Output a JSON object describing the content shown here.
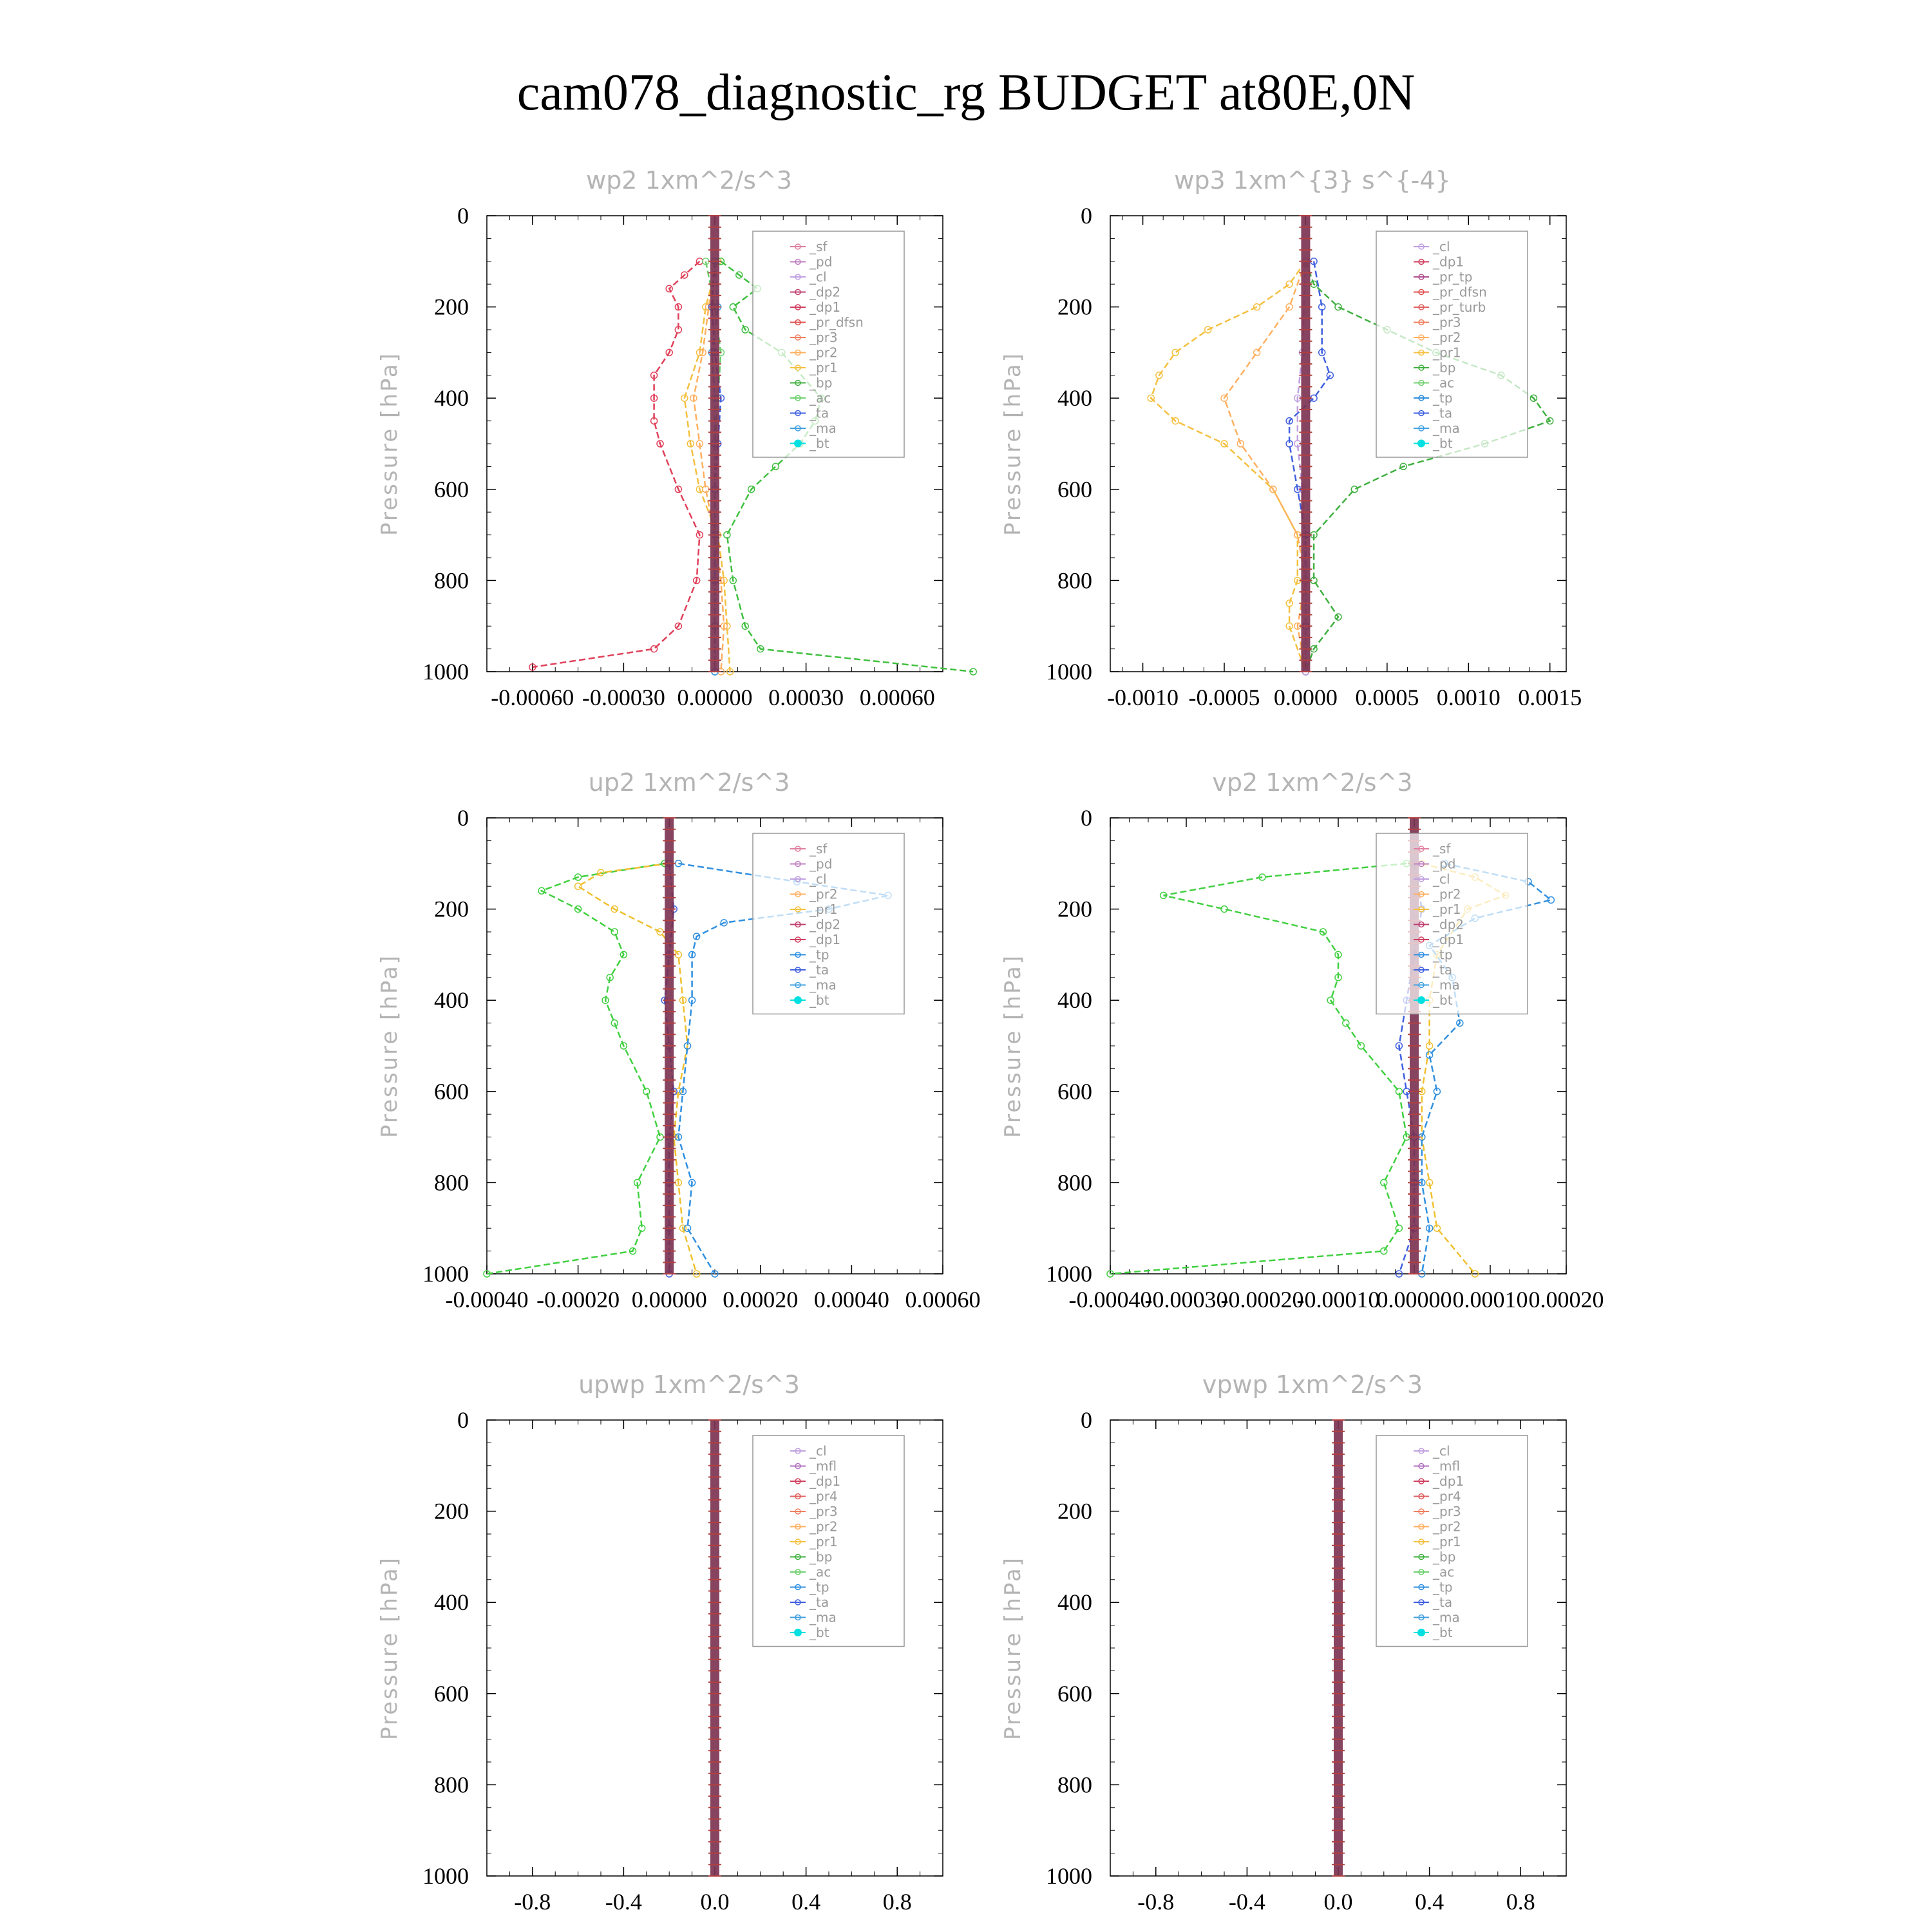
{
  "figure_title": "cam078_diagnostic_rg  BUDGET at80E,0N",
  "chart_data": [
    {
      "type": "line",
      "title": "wp2   1xm^2/s^3",
      "ylabel": "Pressure [hPa]",
      "ylim": [
        1000,
        0
      ],
      "xlim": [
        -0.00075,
        0.00075
      ],
      "xticks": [
        "-0.00060",
        "-0.00030",
        "0.00000",
        "0.00030",
        "0.00060"
      ],
      "xtick_values": [
        -0.0006,
        -0.0003,
        0.0,
        0.0003,
        0.0006
      ],
      "yticks": [
        "0",
        "200",
        "400",
        "600",
        "800",
        "1000"
      ],
      "legend_position": "top-right",
      "legend": [
        "_sf",
        "_pd",
        "_cl",
        "_dp2",
        "_dp1",
        "_pr_dfsn",
        "_pr3",
        "_pr2",
        "_pr1",
        "_bp",
        "_ac",
        "_ta",
        "_ma",
        "_bt"
      ],
      "series": [
        {
          "name": "_dp1",
          "color": "#e0405a",
          "y": [
            100,
            130,
            160,
            200,
            250,
            300,
            350,
            400,
            450,
            500,
            600,
            700,
            800,
            900,
            950,
            990
          ],
          "x": [
            -5e-05,
            -0.0001,
            -0.00015,
            -0.00012,
            -0.00012,
            -0.00015,
            -0.0002,
            -0.0002,
            -0.0002,
            -0.00018,
            -0.00012,
            -5e-05,
            -6e-05,
            -0.00012,
            -0.0002,
            -0.0006
          ]
        },
        {
          "name": "_pr1",
          "color": "#f4c040",
          "y": [
            100,
            200,
            300,
            400,
            500,
            600,
            700,
            800,
            900,
            1000
          ],
          "x": [
            1e-05,
            -3e-05,
            -5e-05,
            -0.0001,
            -8e-05,
            -5e-05,
            1e-05,
            3e-05,
            4e-05,
            5e-05
          ]
        },
        {
          "name": "_pr2",
          "color": "#ffb060",
          "y": [
            100,
            200,
            300,
            400,
            500,
            600,
            700,
            800,
            900,
            1000
          ],
          "x": [
            0.0,
            -2e-05,
            -4e-05,
            -7e-05,
            -5e-05,
            -3e-05,
            0.0,
            2e-05,
            3e-05,
            2e-05
          ]
        },
        {
          "name": "_bp",
          "color": "#40c040",
          "y": [
            100,
            130,
            160,
            200,
            250,
            300,
            400,
            450,
            500,
            550,
            600,
            700,
            800,
            900,
            950,
            1000
          ],
          "x": [
            2e-05,
            8e-05,
            0.00014,
            6e-05,
            0.0001,
            0.00022,
            0.00035,
            0.00033,
            0.00028,
            0.0002,
            0.00012,
            4e-05,
            6e-05,
            0.0001,
            0.00015,
            0.00085
          ]
        },
        {
          "name": "_ac",
          "color": "#70d070",
          "y": [
            100,
            200,
            300,
            400,
            500,
            600,
            700,
            800,
            900,
            1000
          ],
          "x": [
            -3e-05,
            0.0,
            2e-05,
            1e-05,
            0.0,
            0.0,
            0.0,
            0.0,
            0.0,
            0.0
          ]
        },
        {
          "name": "_ta",
          "color": "#4060e0",
          "y": [
            100,
            200,
            300,
            400,
            500,
            600,
            700,
            800,
            900,
            1000
          ],
          "x": [
            0.0,
            -1e-05,
            0.0,
            2e-05,
            1e-05,
            0.0,
            0.0,
            0.0,
            0.0,
            0.0
          ]
        },
        {
          "name": "_ma",
          "color": "#40a0e0",
          "y": [
            100,
            200,
            300,
            400,
            500,
            600,
            700,
            800,
            900,
            1000
          ],
          "x": [
            0.0,
            1e-05,
            -1e-05,
            0.0,
            0.0,
            0.0,
            0.0,
            0.0,
            0.0,
            0.0
          ]
        }
      ]
    },
    {
      "type": "line",
      "title": "wp3   1xm^{3} s^{-4}",
      "ylabel": "Pressure [hPa]",
      "ylim": [
        1000,
        0
      ],
      "xlim": [
        -0.0012,
        0.0016
      ],
      "xticks": [
        "-0.0010",
        "-0.0005",
        "0.0000",
        "0.0005",
        "0.0010",
        "0.0015"
      ],
      "xtick_values": [
        -0.001,
        -0.0005,
        0.0,
        0.0005,
        0.001,
        0.0015
      ],
      "yticks": [
        "0",
        "200",
        "400",
        "600",
        "800",
        "1000"
      ],
      "legend_position": "top-right",
      "legend": [
        "_cl",
        "_dp1",
        "_pr_tp",
        "_pr_dfsn",
        "_pr_turb",
        "_pr3",
        "_pr2",
        "_pr1",
        "_bp",
        "_ac",
        "_tp",
        "_ta",
        "_ma",
        "_bt"
      ],
      "series": [
        {
          "name": "_pr1",
          "color": "#f4c040",
          "y": [
            100,
            150,
            200,
            250,
            300,
            350,
            400,
            450,
            500,
            600,
            700,
            800,
            850,
            900,
            1000
          ],
          "x": [
            0.0,
            -0.0001,
            -0.0003,
            -0.0006,
            -0.0008,
            -0.0009,
            -0.00095,
            -0.0008,
            -0.0005,
            -0.0002,
            -5e-05,
            -5e-05,
            -0.0001,
            -0.0001,
            0.0
          ]
        },
        {
          "name": "_pr2",
          "color": "#ffb060",
          "y": [
            100,
            200,
            300,
            400,
            500,
            600,
            700,
            800,
            900,
            1000
          ],
          "x": [
            0.0,
            -0.0001,
            -0.0003,
            -0.0005,
            -0.0004,
            -0.0002,
            -5e-05,
            0.0,
            -5e-05,
            0.0
          ]
        },
        {
          "name": "_bp",
          "color": "#40b040",
          "y": [
            100,
            150,
            200,
            250,
            300,
            350,
            400,
            450,
            500,
            550,
            600,
            700,
            800,
            880,
            950,
            1000
          ],
          "x": [
            0.0,
            5e-05,
            0.0002,
            0.0005,
            0.0008,
            0.0012,
            0.0014,
            0.0015,
            0.0011,
            0.0006,
            0.0003,
            5e-05,
            5e-05,
            0.0002,
            5e-05,
            0.0
          ]
        },
        {
          "name": "_tp",
          "color": "#4060e0",
          "y": [
            100,
            200,
            300,
            350,
            400,
            450,
            500,
            600,
            700,
            800,
            900,
            1000
          ],
          "x": [
            5e-05,
            0.0001,
            0.0001,
            0.00015,
            5e-05,
            -0.0001,
            -0.0001,
            -5e-05,
            0.0,
            0.0,
            0.0,
            0.0
          ]
        },
        {
          "name": "_cl",
          "color": "#c0a0e0",
          "y": [
            100,
            300,
            400,
            500,
            600,
            800,
            1000
          ],
          "x": [
            0.0,
            -2e-05,
            -5e-05,
            -5e-05,
            -2e-05,
            0.0,
            0.0
          ]
        }
      ]
    },
    {
      "type": "line",
      "title": "up2   1xm^2/s^3",
      "ylabel": "Pressure [hPa]",
      "ylim": [
        1000,
        0
      ],
      "xlim": [
        -0.0004,
        0.0006
      ],
      "xticks": [
        "-0.00040",
        "-0.00020",
        "0.00000",
        "0.00020",
        "0.00040",
        "0.00060"
      ],
      "xtick_values": [
        -0.0004,
        -0.0002,
        0.0,
        0.0002,
        0.0004,
        0.0006
      ],
      "yticks": [
        "0",
        "200",
        "400",
        "600",
        "800",
        "1000"
      ],
      "legend_position": "top-right",
      "legend": [
        "_sf",
        "_pd",
        "_cl",
        "_pr2",
        "_pr1",
        "_dp2",
        "_dp1",
        "_tp",
        "_ta",
        "_ma",
        "_bt"
      ],
      "series": [
        {
          "name": "_dp1",
          "color": "#40d040",
          "y": [
            100,
            130,
            160,
            200,
            250,
            300,
            350,
            400,
            450,
            500,
            600,
            700,
            800,
            900,
            950,
            1000
          ],
          "x": [
            -1e-05,
            -0.0002,
            -0.00028,
            -0.0002,
            -0.00012,
            -0.0001,
            -0.00013,
            -0.00014,
            -0.00012,
            -0.0001,
            -5e-05,
            -2e-05,
            -7e-05,
            -6e-05,
            -8e-05,
            -0.0004
          ]
        },
        {
          "name": "_pr1",
          "color": "#f0c030",
          "y": [
            100,
            120,
            150,
            200,
            250,
            300,
            400,
            500,
            600,
            700,
            800,
            900,
            1000
          ],
          "x": [
            0.0,
            -0.00015,
            -0.0002,
            -0.00012,
            -2e-05,
            2e-05,
            3e-05,
            4e-05,
            2e-05,
            1e-05,
            2e-05,
            3e-05,
            6e-05
          ]
        },
        {
          "name": "_tp",
          "color": "#3090e0",
          "y": [
            100,
            140,
            170,
            200,
            230,
            260,
            300,
            400,
            500,
            600,
            700,
            800,
            900,
            1000
          ],
          "x": [
            2e-05,
            0.00028,
            0.00048,
            0.00035,
            0.00012,
            6e-05,
            5e-05,
            5e-05,
            4e-05,
            3e-05,
            2e-05,
            5e-05,
            4e-05,
            0.0001
          ]
        },
        {
          "name": "_ta",
          "color": "#4060e0",
          "y": [
            100,
            200,
            300,
            400,
            500,
            600,
            700,
            800,
            900,
            1000
          ],
          "x": [
            0.0,
            1e-05,
            0.0,
            -1e-05,
            0.0,
            1e-05,
            0.0,
            0.0,
            0.0,
            0.0
          ]
        }
      ]
    },
    {
      "type": "line",
      "title": "vp2   1xm^2/s^3",
      "ylabel": "Pressure [hPa]",
      "ylim": [
        1000,
        0
      ],
      "xlim": [
        -0.0004,
        0.0002
      ],
      "xticks": [
        "-0.00040",
        "-0.00030",
        "-0.00020",
        "-0.00010",
        "0.00000",
        "0.00010",
        "0.00020"
      ],
      "xtick_values": [
        -0.0004,
        -0.0003,
        -0.0002,
        -0.0001,
        0.0,
        0.0001,
        0.0002
      ],
      "yticks": [
        "0",
        "200",
        "400",
        "600",
        "800",
        "1000"
      ],
      "legend_position": "top-right",
      "legend": [
        "_sf",
        "_pd",
        "_cl",
        "_pr2",
        "_pr1",
        "_dp2",
        "_dp1",
        "_tp",
        "_ta",
        "_ma",
        "_bt"
      ],
      "series": [
        {
          "name": "_dp1",
          "color": "#40d040",
          "y": [
            100,
            130,
            170,
            200,
            250,
            300,
            350,
            400,
            450,
            500,
            600,
            700,
            800,
            900,
            950,
            1000
          ],
          "x": [
            -1e-05,
            -0.0002,
            -0.00033,
            -0.00025,
            -0.00012,
            -0.0001,
            -0.0001,
            -0.00011,
            -9e-05,
            -7e-05,
            -2e-05,
            -1e-05,
            -4e-05,
            -2e-05,
            -4e-05,
            -0.0004
          ]
        },
        {
          "name": "_pr1",
          "color": "#f0c030",
          "y": [
            100,
            130,
            170,
            200,
            300,
            400,
            500,
            600,
            700,
            800,
            900,
            1000
          ],
          "x": [
            1e-05,
            8e-05,
            0.00012,
            7e-05,
            3e-05,
            2e-05,
            2e-05,
            1e-05,
            1e-05,
            2e-05,
            3e-05,
            8e-05
          ]
        },
        {
          "name": "_tp",
          "color": "#3090e0",
          "y": [
            100,
            140,
            180,
            220,
            280,
            350,
            450,
            520,
            600,
            700,
            800,
            900,
            1000
          ],
          "x": [
            4e-05,
            0.00015,
            0.00018,
            8e-05,
            2e-05,
            5e-05,
            6e-05,
            2e-05,
            3e-05,
            1e-05,
            1e-05,
            2e-05,
            1e-05
          ]
        },
        {
          "name": "_ta",
          "color": "#4060e0",
          "y": [
            100,
            200,
            300,
            400,
            500,
            600,
            700,
            800,
            900,
            1000
          ],
          "x": [
            0.0,
            1e-05,
            0.0,
            -1e-05,
            -2e-05,
            -1e-05,
            0.0,
            0.0,
            0.0,
            -2e-05
          ]
        }
      ]
    },
    {
      "type": "line",
      "title": "upwp   1xm^2/s^3",
      "ylabel": "Pressure [hPa]",
      "ylim": [
        1000,
        0
      ],
      "xlim": [
        -1.0,
        1.0
      ],
      "xticks": [
        "-0.8",
        "-0.4",
        "0.0",
        "0.4",
        "0.8"
      ],
      "xtick_values": [
        -0.8,
        -0.4,
        0.0,
        0.4,
        0.8
      ],
      "yticks": [
        "0",
        "200",
        "400",
        "600",
        "800",
        "1000"
      ],
      "legend_position": "top-right",
      "legend": [
        "_cl",
        "_mfl",
        "_dp1",
        "_pr4",
        "_pr3",
        "_pr2",
        "_pr1",
        "_bp",
        "_ac",
        "_tp",
        "_ta",
        "_ma",
        "_bt"
      ],
      "series": []
    },
    {
      "type": "line",
      "title": "vpwp   1xm^2/s^3",
      "ylabel": "Pressure [hPa]",
      "ylim": [
        1000,
        0
      ],
      "xlim": [
        -1.0,
        1.0
      ],
      "xticks": [
        "-0.8",
        "-0.4",
        "0.0",
        "0.4",
        "0.8"
      ],
      "xtick_values": [
        -0.8,
        -0.4,
        0.0,
        0.4,
        0.8
      ],
      "yticks": [
        "0",
        "200",
        "400",
        "600",
        "800",
        "1000"
      ],
      "legend_position": "top-right",
      "legend": [
        "_cl",
        "_mfl",
        "_dp1",
        "_pr4",
        "_pr3",
        "_pr2",
        "_pr1",
        "_bp",
        "_ac",
        "_tp",
        "_ta",
        "_ma",
        "_bt"
      ],
      "series": []
    }
  ]
}
